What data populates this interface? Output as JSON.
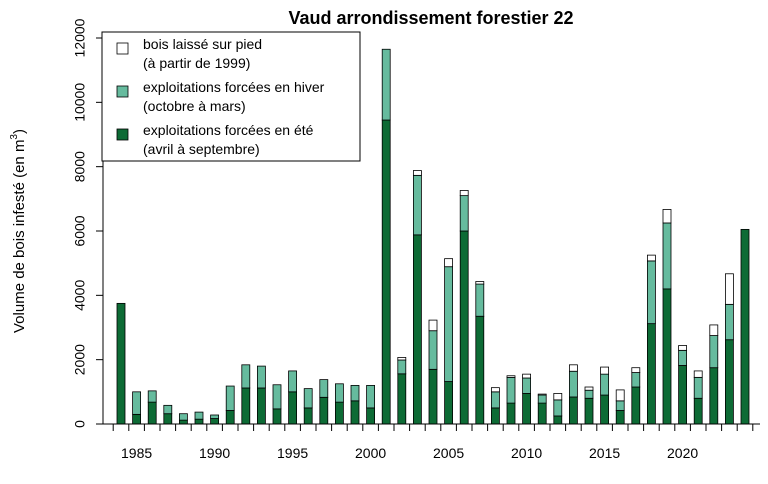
{
  "chart_data": {
    "type": "bar",
    "stacked": true,
    "title": "Vaud arrondissement forestier 22",
    "ylabel": "Volume de bois infesté (en m",
    "ylabel_sup": "3",
    "ylabel_end": ")",
    "xlabel": "",
    "ylim": [
      0,
      12000
    ],
    "y_ticks": [
      0,
      2000,
      4000,
      6000,
      8000,
      10000,
      12000
    ],
    "x_ticks": [
      1985,
      1990,
      1995,
      2000,
      2005,
      2010,
      2015,
      2020
    ],
    "legend_position": "top-left",
    "categories": [
      1984,
      1985,
      1986,
      1987,
      1988,
      1989,
      1990,
      1991,
      1992,
      1993,
      1994,
      1995,
      1996,
      1997,
      1998,
      1999,
      2000,
      2001,
      2002,
      2003,
      2004,
      2005,
      2006,
      2007,
      2008,
      2009,
      2010,
      2011,
      2012,
      2013,
      2014,
      2015,
      2016,
      2017,
      2018,
      2019,
      2020,
      2021,
      2022,
      2023,
      2024
    ],
    "series": [
      {
        "name": "exploitations forcées en été",
        "name_line2": "(avril à septembre)",
        "color": "#0d6b35",
        "values": [
          3750,
          300,
          680,
          320,
          120,
          150,
          170,
          420,
          1120,
          1120,
          470,
          1000,
          500,
          830,
          680,
          720,
          500,
          9450,
          1560,
          5880,
          1700,
          1320,
          6000,
          3350,
          500,
          650,
          950,
          650,
          250,
          840,
          800,
          900,
          420,
          1150,
          3120,
          4200,
          1820,
          800,
          1750,
          2620,
          6050
        ]
      },
      {
        "name": "exploitations forcées en hiver",
        "name_line2": "(octobre à mars)",
        "color": "#66bb9e",
        "values": [
          0,
          700,
          350,
          260,
          200,
          220,
          110,
          760,
          720,
          680,
          750,
          650,
          600,
          550,
          570,
          480,
          700,
          2200,
          430,
          1850,
          1200,
          3570,
          1100,
          1000,
          500,
          800,
          480,
          250,
          500,
          800,
          250,
          650,
          300,
          450,
          1950,
          2050,
          470,
          650,
          1000,
          1100,
          0
        ]
      },
      {
        "name": "bois laissé sur pied",
        "name_line2": "(à partir de 1999)",
        "color": "#ffffff",
        "values": [
          0,
          0,
          0,
          0,
          0,
          0,
          0,
          0,
          0,
          0,
          0,
          0,
          0,
          0,
          0,
          0,
          0,
          0,
          80,
          150,
          330,
          250,
          160,
          80,
          130,
          50,
          120,
          30,
          200,
          200,
          100,
          220,
          340,
          150,
          180,
          420,
          150,
          200,
          330,
          950,
          0
        ]
      }
    ]
  }
}
